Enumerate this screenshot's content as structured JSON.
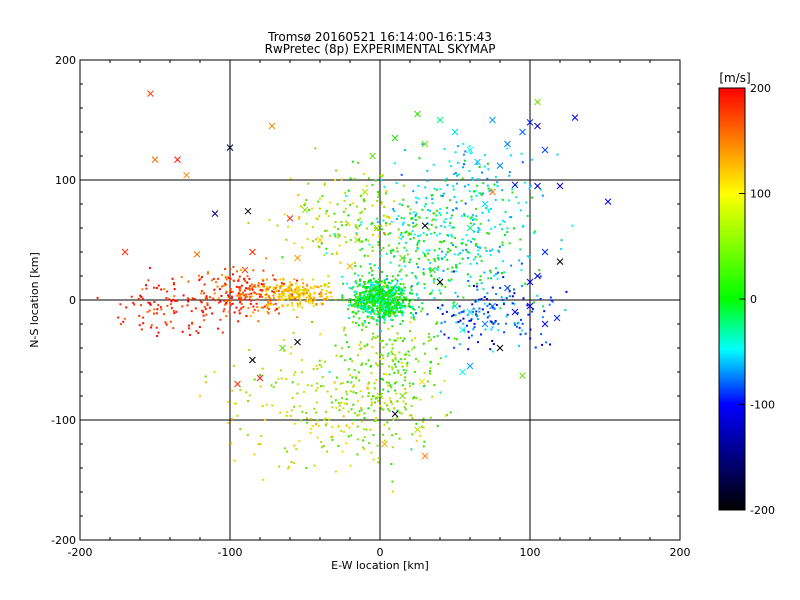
{
  "chart_data": {
    "type": "scatter",
    "title": "Tromsø 20160521 16:14:00-16:15:43",
    "subtitle": "RwPretec (8p) EXPERIMENTAL SKYMAP",
    "xlabel": "E-W location [km]",
    "ylabel": "N-S location [km]",
    "xlim": [
      -200,
      200
    ],
    "ylim": [
      -200,
      200
    ],
    "xticks": [
      "-200",
      "-100",
      "0",
      "100",
      "200"
    ],
    "yticks": [
      "-200",
      "-100",
      "0",
      "100",
      "200"
    ],
    "grid": true,
    "colorbar": {
      "label": "[m/s]",
      "range": [
        -200,
        200
      ],
      "ticks": [
        "200",
        "100",
        "0",
        "-100",
        "-200"
      ]
    },
    "marker_types": [
      "dot",
      "cross"
    ],
    "series": [
      {
        "marker": "cross",
        "points": [
          {
            "x": -153,
            "y": 172,
            "v": 170
          },
          {
            "x": -150,
            "y": 117,
            "v": 150
          },
          {
            "x": -135,
            "y": 117,
            "v": 190
          },
          {
            "x": -129,
            "y": 104,
            "v": 140
          },
          {
            "x": -100,
            "y": 127,
            "v": -180
          },
          {
            "x": -72,
            "y": 145,
            "v": 140
          },
          {
            "x": -110,
            "y": 72,
            "v": -150
          },
          {
            "x": -88,
            "y": 74,
            "v": -200
          },
          {
            "x": -170,
            "y": 40,
            "v": 180
          },
          {
            "x": -122,
            "y": 38,
            "v": 150
          },
          {
            "x": -90,
            "y": 25,
            "v": 170
          },
          {
            "x": -85,
            "y": 40,
            "v": 180
          },
          {
            "x": -60,
            "y": 68,
            "v": 180
          },
          {
            "x": -55,
            "y": 35,
            "v": 130
          },
          {
            "x": -50,
            "y": 75,
            "v": 60
          },
          {
            "x": -40,
            "y": 50,
            "v": 110
          },
          {
            "x": -20,
            "y": 28,
            "v": 120
          },
          {
            "x": -15,
            "y": 50,
            "v": 60
          },
          {
            "x": -10,
            "y": 90,
            "v": 70
          },
          {
            "x": -5,
            "y": 120,
            "v": 40
          },
          {
            "x": -85,
            "y": -50,
            "v": -200
          },
          {
            "x": -95,
            "y": -70,
            "v": 180
          },
          {
            "x": -80,
            "y": -65,
            "v": 190
          },
          {
            "x": -65,
            "y": -40,
            "v": 30
          },
          {
            "x": -55,
            "y": -35,
            "v": -200
          },
          {
            "x": 10,
            "y": 135,
            "v": 10
          },
          {
            "x": 25,
            "y": 155,
            "v": 20
          },
          {
            "x": 30,
            "y": 130,
            "v": 40
          },
          {
            "x": 40,
            "y": 150,
            "v": -10
          },
          {
            "x": 50,
            "y": 140,
            "v": -30
          },
          {
            "x": 60,
            "y": 125,
            "v": -20
          },
          {
            "x": 75,
            "y": 150,
            "v": -50
          },
          {
            "x": 85,
            "y": 130,
            "v": -60
          },
          {
            "x": 95,
            "y": 140,
            "v": -70
          },
          {
            "x": 100,
            "y": 148,
            "v": -90
          },
          {
            "x": 105,
            "y": 145,
            "v": -120
          },
          {
            "x": 110,
            "y": 125,
            "v": -80
          },
          {
            "x": 130,
            "y": 152,
            "v": -100
          },
          {
            "x": 105,
            "y": 165,
            "v": 50
          },
          {
            "x": 65,
            "y": 115,
            "v": -40
          },
          {
            "x": 80,
            "y": 112,
            "v": -60
          },
          {
            "x": 90,
            "y": 96,
            "v": -110
          },
          {
            "x": 70,
            "y": 80,
            "v": -30
          },
          {
            "x": 75,
            "y": 90,
            "v": 150
          },
          {
            "x": 105,
            "y": 95,
            "v": -120
          },
          {
            "x": 120,
            "y": 95,
            "v": -120
          },
          {
            "x": 152,
            "y": 82,
            "v": -100
          },
          {
            "x": 30,
            "y": 62,
            "v": -200
          },
          {
            "x": 60,
            "y": 60,
            "v": -10
          },
          {
            "x": 110,
            "y": 40,
            "v": -90
          },
          {
            "x": 120,
            "y": 32,
            "v": -200
          },
          {
            "x": 100,
            "y": 15,
            "v": -110
          },
          {
            "x": 105,
            "y": 20,
            "v": -130
          },
          {
            "x": 85,
            "y": 10,
            "v": -80
          },
          {
            "x": 75,
            "y": -5,
            "v": -60
          },
          {
            "x": 70,
            "y": -20,
            "v": -60
          },
          {
            "x": 60,
            "y": -10,
            "v": -30
          },
          {
            "x": 55,
            "y": -25,
            "v": -20
          },
          {
            "x": 50,
            "y": -5,
            "v": -10
          },
          {
            "x": 90,
            "y": -10,
            "v": -120
          },
          {
            "x": 100,
            "y": -5,
            "v": -110
          },
          {
            "x": 110,
            "y": -20,
            "v": -100
          },
          {
            "x": 118,
            "y": -15,
            "v": -90
          },
          {
            "x": 80,
            "y": -40,
            "v": -200
          },
          {
            "x": 55,
            "y": -60,
            "v": -20
          },
          {
            "x": 60,
            "y": -55,
            "v": -50
          },
          {
            "x": 95,
            "y": -63,
            "v": 40
          },
          {
            "x": 28,
            "y": -68,
            "v": 100
          },
          {
            "x": 15,
            "y": -80,
            "v": 50
          },
          {
            "x": 10,
            "y": -95,
            "v": -180
          },
          {
            "x": 25,
            "y": -108,
            "v": 70
          },
          {
            "x": 30,
            "y": -130,
            "v": 140
          },
          {
            "x": 3,
            "y": -120,
            "v": 120
          },
          {
            "x": 0,
            "y": -80,
            "v": 60
          },
          {
            "x": -2,
            "y": 60,
            "v": 50
          },
          {
            "x": 15,
            "y": 35,
            "v": 40
          },
          {
            "x": 40,
            "y": 15,
            "v": -200
          },
          {
            "x": 35,
            "y": 25,
            "v": 10
          }
        ]
      }
    ]
  }
}
